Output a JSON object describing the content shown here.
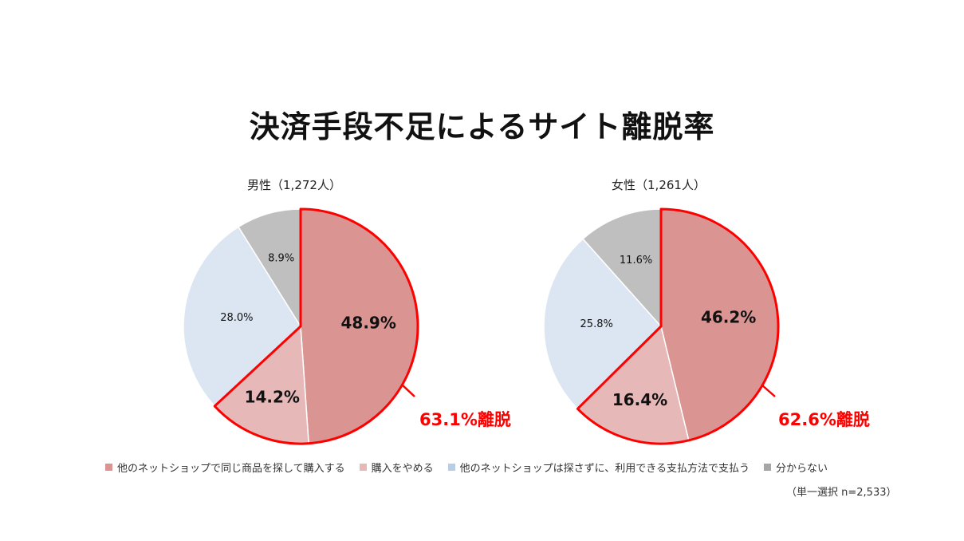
{
  "title": "決済手段不足によるサイト離脱率",
  "note": "（単一選択 n=2,533）",
  "colors": {
    "other_shop_same": "#da9593",
    "quit": "#e6b9b8",
    "other_payment": "#dce6f2",
    "unknown": "#bfbfbf",
    "highlight": "#ff0000"
  },
  "legend": [
    {
      "label": "他のネットショップで同じ商品を探して購入する",
      "color": "#da9593"
    },
    {
      "label": "購入をやめる",
      "color": "#e6b9b8"
    },
    {
      "label": "他のネットショップは探さずに、利用できる支払方法で支払う",
      "color": "#b9cde5"
    },
    {
      "label": "分からない",
      "color": "#a6a6a6"
    }
  ],
  "chart_data": [
    {
      "type": "pie",
      "title": "男性（1,272人）",
      "categories": [
        "他のネットショップで同じ商品を探して購入する",
        "購入をやめる",
        "他のネットショップは探さずに、利用できる支払方法で支払う",
        "分からない"
      ],
      "values": [
        48.9,
        14.2,
        28.0,
        8.9
      ],
      "labels": [
        "48.9%",
        "14.2%",
        "28.0%",
        "8.9%"
      ],
      "annotation": "63.1%離脱"
    },
    {
      "type": "pie",
      "title": "女性（1,261人）",
      "categories": [
        "他のネットショップで同じ商品を探して購入する",
        "購入をやめる",
        "他のネットショップは探さずに、利用できる支払方法で支払う",
        "分からない"
      ],
      "values": [
        46.2,
        16.4,
        25.8,
        11.6
      ],
      "labels": [
        "46.2%",
        "16.4%",
        "25.8%",
        "11.6%"
      ],
      "annotation": "62.6%離脱"
    }
  ]
}
